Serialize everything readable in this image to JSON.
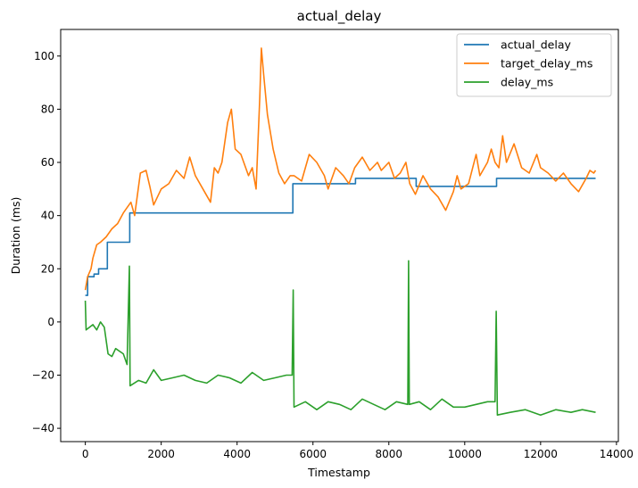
{
  "chart_data": {
    "type": "line",
    "title": "actual_delay",
    "xlabel": "Timestamp",
    "ylabel": "Duration (ms)",
    "xlim": [
      -650,
      14050
    ],
    "ylim": [
      -45,
      110
    ],
    "xticks": [
      0,
      2000,
      4000,
      6000,
      8000,
      10000,
      12000,
      14000
    ],
    "yticks": [
      -40,
      -20,
      0,
      20,
      40,
      60,
      80,
      100
    ],
    "legend_position": "top-right",
    "grid": false,
    "series": [
      {
        "name": "actual_delay",
        "color": "#1f77b4",
        "step": true,
        "points": [
          [
            0,
            10
          ],
          [
            60,
            17
          ],
          [
            200,
            17
          ],
          [
            230,
            18
          ],
          [
            330,
            18
          ],
          [
            350,
            20
          ],
          [
            560,
            20
          ],
          [
            580,
            30
          ],
          [
            1150,
            30
          ],
          [
            1170,
            41
          ],
          [
            5450,
            41
          ],
          [
            5470,
            52
          ],
          [
            5700,
            52
          ],
          [
            5720,
            52
          ],
          [
            7100,
            52
          ],
          [
            7120,
            54
          ],
          [
            8700,
            54
          ],
          [
            8720,
            51
          ],
          [
            10820,
            51
          ],
          [
            10840,
            54
          ],
          [
            13450,
            54
          ]
        ]
      },
      {
        "name": "target_delay_ms",
        "color": "#ff7f0e",
        "step": false,
        "points": [
          [
            0,
            12
          ],
          [
            60,
            17
          ],
          [
            150,
            20
          ],
          [
            200,
            24
          ],
          [
            300,
            29
          ],
          [
            400,
            30
          ],
          [
            550,
            32
          ],
          [
            700,
            35
          ],
          [
            850,
            37
          ],
          [
            1000,
            41
          ],
          [
            1100,
            43
          ],
          [
            1200,
            45
          ],
          [
            1300,
            40
          ],
          [
            1450,
            56
          ],
          [
            1600,
            57
          ],
          [
            1700,
            51
          ],
          [
            1800,
            44
          ],
          [
            2000,
            50
          ],
          [
            2200,
            52
          ],
          [
            2400,
            57
          ],
          [
            2600,
            54
          ],
          [
            2750,
            62
          ],
          [
            2900,
            55
          ],
          [
            3100,
            50
          ],
          [
            3300,
            45
          ],
          [
            3400,
            58
          ],
          [
            3500,
            56
          ],
          [
            3600,
            60
          ],
          [
            3750,
            75
          ],
          [
            3850,
            80
          ],
          [
            3950,
            65
          ],
          [
            4100,
            63
          ],
          [
            4300,
            55
          ],
          [
            4400,
            58
          ],
          [
            4500,
            50
          ],
          [
            4600,
            85
          ],
          [
            4640,
            103
          ],
          [
            4700,
            93
          ],
          [
            4800,
            78
          ],
          [
            4950,
            65
          ],
          [
            5100,
            56
          ],
          [
            5250,
            52
          ],
          [
            5400,
            55
          ],
          [
            5500,
            55
          ],
          [
            5700,
            53
          ],
          [
            5900,
            63
          ],
          [
            6100,
            60
          ],
          [
            6300,
            55
          ],
          [
            6400,
            50
          ],
          [
            6600,
            58
          ],
          [
            6800,
            55
          ],
          [
            6950,
            52
          ],
          [
            7100,
            58
          ],
          [
            7300,
            62
          ],
          [
            7500,
            57
          ],
          [
            7700,
            60
          ],
          [
            7800,
            57
          ],
          [
            8000,
            60
          ],
          [
            8150,
            54
          ],
          [
            8300,
            56
          ],
          [
            8450,
            60
          ],
          [
            8550,
            52
          ],
          [
            8700,
            48
          ],
          [
            8900,
            55
          ],
          [
            9100,
            50
          ],
          [
            9300,
            47
          ],
          [
            9500,
            42
          ],
          [
            9700,
            49
          ],
          [
            9800,
            55
          ],
          [
            9900,
            50
          ],
          [
            10100,
            52
          ],
          [
            10300,
            63
          ],
          [
            10400,
            55
          ],
          [
            10600,
            60
          ],
          [
            10700,
            65
          ],
          [
            10800,
            60
          ],
          [
            10900,
            58
          ],
          [
            11000,
            70
          ],
          [
            11100,
            60
          ],
          [
            11300,
            67
          ],
          [
            11500,
            58
          ],
          [
            11700,
            56
          ],
          [
            11900,
            63
          ],
          [
            12000,
            58
          ],
          [
            12200,
            56
          ],
          [
            12400,
            53
          ],
          [
            12600,
            56
          ],
          [
            12800,
            52
          ],
          [
            13000,
            49
          ],
          [
            13200,
            54
          ],
          [
            13300,
            57
          ],
          [
            13400,
            56
          ],
          [
            13450,
            57
          ]
        ]
      },
      {
        "name": "delay_ms",
        "color": "#2ca02c",
        "step": false,
        "points": [
          [
            0,
            8
          ],
          [
            20,
            -3
          ],
          [
            200,
            -1
          ],
          [
            300,
            -3
          ],
          [
            400,
            0
          ],
          [
            500,
            -2
          ],
          [
            600,
            -12
          ],
          [
            700,
            -13
          ],
          [
            800,
            -10
          ],
          [
            1000,
            -12
          ],
          [
            1100,
            -16
          ],
          [
            1160,
            21
          ],
          [
            1180,
            -24
          ],
          [
            1400,
            -22
          ],
          [
            1600,
            -23
          ],
          [
            1800,
            -18
          ],
          [
            2000,
            -22
          ],
          [
            2300,
            -21
          ],
          [
            2600,
            -20
          ],
          [
            2900,
            -22
          ],
          [
            3200,
            -23
          ],
          [
            3500,
            -20
          ],
          [
            3800,
            -21
          ],
          [
            4100,
            -23
          ],
          [
            4400,
            -19
          ],
          [
            4700,
            -22
          ],
          [
            5000,
            -21
          ],
          [
            5300,
            -20
          ],
          [
            5450,
            -20
          ],
          [
            5480,
            12
          ],
          [
            5500,
            -32
          ],
          [
            5800,
            -30
          ],
          [
            6100,
            -33
          ],
          [
            6400,
            -30
          ],
          [
            6700,
            -31
          ],
          [
            7000,
            -33
          ],
          [
            7300,
            -29
          ],
          [
            7600,
            -31
          ],
          [
            7900,
            -33
          ],
          [
            8200,
            -30
          ],
          [
            8500,
            -31
          ],
          [
            8520,
            23
          ],
          [
            8540,
            -31
          ],
          [
            8800,
            -30
          ],
          [
            9100,
            -33
          ],
          [
            9400,
            -29
          ],
          [
            9700,
            -32
          ],
          [
            10000,
            -32
          ],
          [
            10300,
            -31
          ],
          [
            10600,
            -30
          ],
          [
            10800,
            -30
          ],
          [
            10830,
            4
          ],
          [
            10860,
            -35
          ],
          [
            11200,
            -34
          ],
          [
            11600,
            -33
          ],
          [
            12000,
            -35
          ],
          [
            12400,
            -33
          ],
          [
            12800,
            -34
          ],
          [
            13100,
            -33
          ],
          [
            13450,
            -34
          ]
        ]
      }
    ]
  }
}
